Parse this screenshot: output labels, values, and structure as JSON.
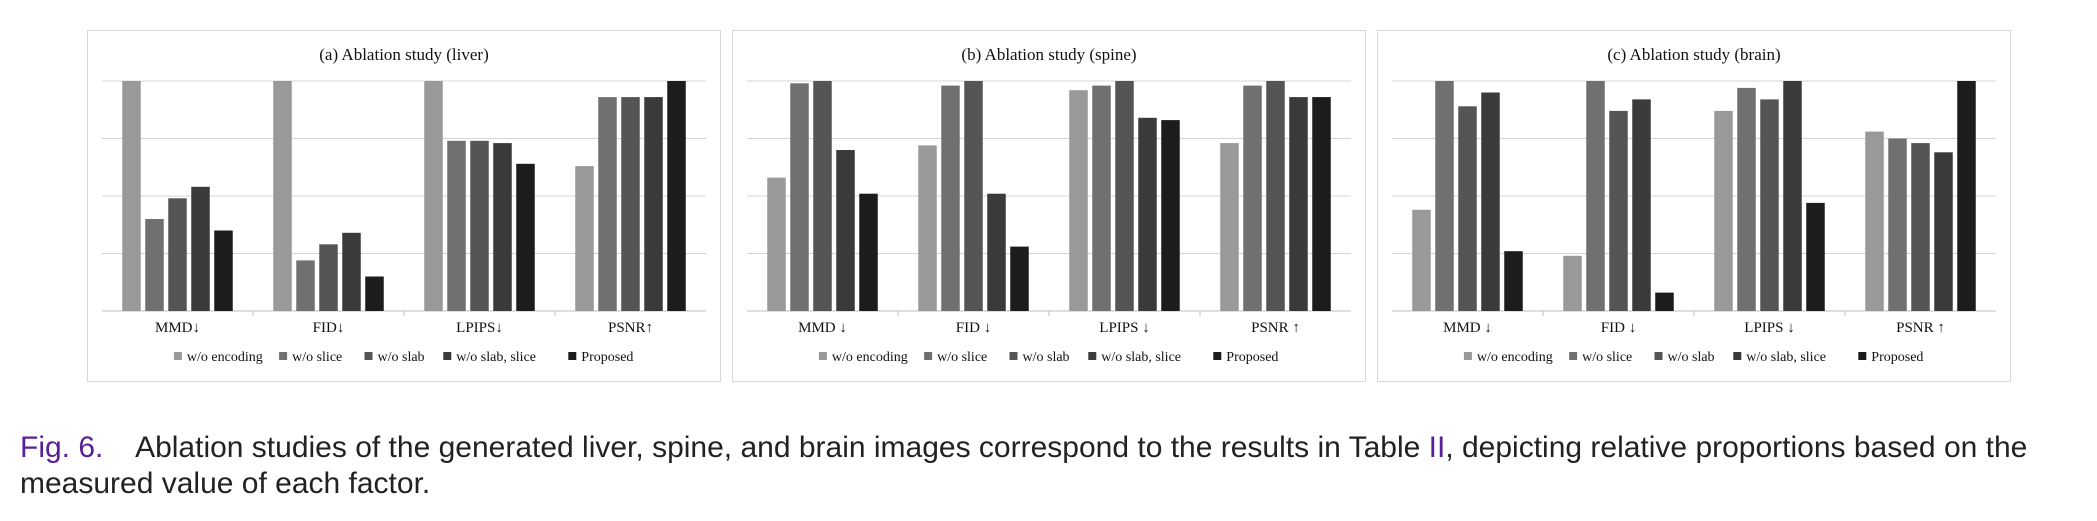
{
  "chart_data": [
    {
      "type": "bar",
      "title": "(a) Ablation study (liver)",
      "categories": [
        "MMD↓",
        "FID↓",
        "LPIPS↓",
        "PSNR↑"
      ],
      "ylim": [
        0,
        1
      ],
      "grid": true,
      "legend_position": "bottom",
      "series": [
        {
          "name": "w/o encoding",
          "color": "#999999",
          "values": [
            1.0,
            1.0,
            1.0,
            0.63
          ]
        },
        {
          "name": "w/o slice",
          "color": "#707070",
          "values": [
            0.4,
            0.22,
            0.74,
            0.93
          ]
        },
        {
          "name": "w/o slab",
          "color": "#555555",
          "values": [
            0.49,
            0.29,
            0.74,
            0.93
          ]
        },
        {
          "name": "w/o slab, slice",
          "color": "#3a3a3a",
          "values": [
            0.54,
            0.34,
            0.73,
            0.93
          ]
        },
        {
          "name": "Proposed",
          "color": "#1c1c1c",
          "values": [
            0.35,
            0.15,
            0.64,
            1.0
          ]
        }
      ]
    },
    {
      "type": "bar",
      "title": "(b) Ablation study (spine)",
      "categories": [
        "MMD ↓",
        "FID ↓",
        "LPIPS ↓",
        "PSNR ↑"
      ],
      "ylim": [
        0,
        1
      ],
      "grid": true,
      "legend_position": "bottom",
      "series": [
        {
          "name": "w/o encoding",
          "color": "#999999",
          "values": [
            0.58,
            0.72,
            0.96,
            0.73
          ]
        },
        {
          "name": "w/o slice",
          "color": "#707070",
          "values": [
            0.99,
            0.98,
            0.98,
            0.98
          ]
        },
        {
          "name": "w/o slab",
          "color": "#555555",
          "values": [
            1.0,
            1.0,
            1.0,
            1.0
          ]
        },
        {
          "name": "w/o slab, slice",
          "color": "#3a3a3a",
          "values": [
            0.7,
            0.51,
            0.84,
            0.93
          ]
        },
        {
          "name": "Proposed",
          "color": "#1c1c1c",
          "values": [
            0.51,
            0.28,
            0.83,
            0.93
          ]
        }
      ]
    },
    {
      "type": "bar",
      "title": "(c) Ablation study (brain)",
      "categories": [
        "MMD ↓",
        "FID ↓",
        "LPIPS ↓",
        "PSNR ↑"
      ],
      "ylim": [
        0,
        1
      ],
      "grid": true,
      "legend_position": "bottom",
      "series": [
        {
          "name": "w/o encoding",
          "color": "#999999",
          "values": [
            0.44,
            0.24,
            0.87,
            0.78
          ]
        },
        {
          "name": "w/o slice",
          "color": "#707070",
          "values": [
            1.0,
            1.0,
            0.97,
            0.75
          ]
        },
        {
          "name": "w/o slab",
          "color": "#555555",
          "values": [
            0.89,
            0.87,
            0.92,
            0.73
          ]
        },
        {
          "name": "w/o slab, slice",
          "color": "#3a3a3a",
          "values": [
            0.95,
            0.92,
            1.0,
            0.69
          ]
        },
        {
          "name": "Proposed",
          "color": "#1c1c1c",
          "values": [
            0.26,
            0.08,
            0.47,
            1.0
          ]
        }
      ]
    }
  ],
  "caption": {
    "label": "Fig. 6.",
    "text_before": "Ablation studies of the generated liver, spine, and brain images correspond to the results in Table ",
    "table_ref": "II",
    "text_after": ", depicting relative proportions based on the measured value of each factor."
  }
}
